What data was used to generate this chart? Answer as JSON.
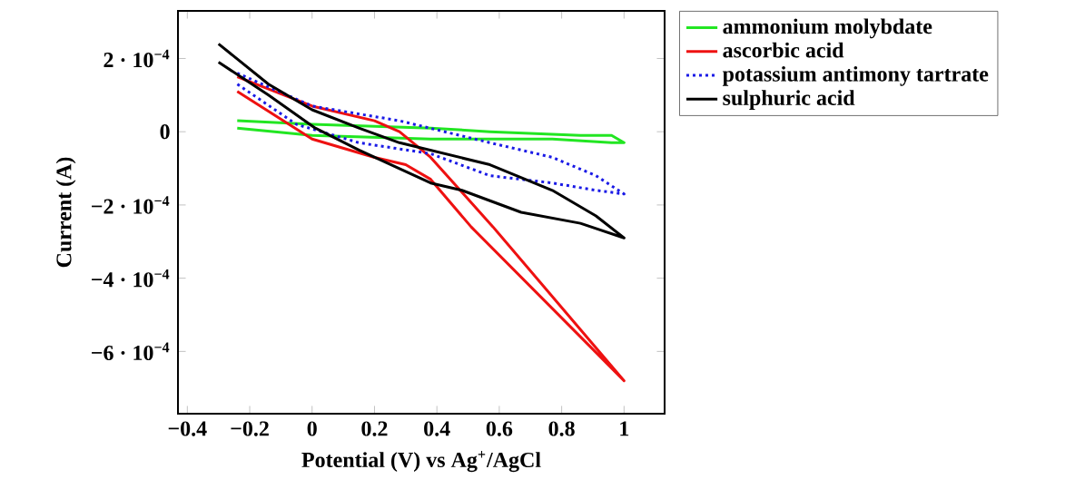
{
  "chart_data": {
    "type": "line",
    "xlabel": "Potential (V) vs Ag$^{+}$/AgCl",
    "ylabel": "Current (A)",
    "xlim": [
      -0.43,
      1.13
    ],
    "ylim": [
      -0.00077,
      0.00033
    ],
    "xticks": [
      {
        "value": -0.4,
        "label": "−0.4"
      },
      {
        "value": -0.2,
        "label": "−0.2"
      },
      0,
      0.2,
      0.4,
      0.6,
      0.8,
      1
    ],
    "yticks": [
      {
        "value": -0.0006,
        "label": "−6 · 10$^{−4}$"
      },
      {
        "value": -0.0004,
        "label": "−4 · 10$^{−4}$"
      },
      {
        "value": -0.0002,
        "label": "−2 · 10$^{−4}$"
      },
      0,
      {
        "value": 0.0002,
        "label": "2 · 10$^{−4}$"
      }
    ],
    "legend": "top right",
    "marker": "none",
    "series": [
      {
        "name": "ammonium molybdate",
        "color": "#22e622",
        "line_style": "solid",
        "x": [
          -0.24,
          0.0,
          0.38,
          0.57,
          0.86,
          0.96,
          1.0,
          0.96,
          0.77,
          0.38,
          0.0,
          -0.24
        ],
        "values": [
          3e-05,
          2e-05,
          1e-05,
          0.0,
          -1e-05,
          -1e-05,
          -3e-05,
          -3e-05,
          -2e-05,
          -2e-05,
          -1e-05,
          1e-05
        ]
      },
      {
        "name": "ascorbic acid",
        "color": "#ee1111",
        "line_style": "solid",
        "x": [
          -0.24,
          0.0,
          0.2,
          0.3,
          0.38,
          0.51,
          1.0,
          0.58,
          0.38,
          0.28,
          0.2,
          0.0,
          -0.24
        ],
        "values": [
          0.00011,
          -2e-05,
          -7e-05,
          -9e-05,
          -0.00013,
          -0.00026,
          -0.00068,
          -0.00026,
          -7e-05,
          0.0,
          3e-05,
          7e-05,
          0.00015
        ]
      },
      {
        "name": "potassium antimony tartrate",
        "color": "#1a1ae6",
        "line_style": "dotted",
        "x": [
          -0.24,
          0.0,
          0.28,
          0.57,
          0.77,
          0.91,
          1.0,
          0.91,
          0.77,
          0.57,
          0.38,
          0.15,
          -0.05,
          -0.24
        ],
        "values": [
          0.00016,
          7e-05,
          3e-05,
          -3e-05,
          -7e-05,
          -0.00012,
          -0.00017,
          -0.00016,
          -0.00014,
          -0.00012,
          -6e-05,
          -3e-05,
          2e-05,
          0.00013
        ]
      },
      {
        "name": "sulphuric acid",
        "color": "#000000",
        "line_style": "solid",
        "x": [
          -0.3,
          -0.14,
          0.0,
          0.15,
          0.28,
          0.57,
          0.77,
          0.91,
          1.0,
          0.86,
          0.67,
          0.48,
          0.38,
          0.15,
          0.01,
          -0.14,
          -0.3
        ],
        "values": [
          0.00024,
          0.00013,
          6e-05,
          1e-05,
          -3e-05,
          -9e-05,
          -0.00016,
          -0.00023,
          -0.00029,
          -0.00025,
          -0.00022,
          -0.00016,
          -0.00014,
          -5e-05,
          1e-05,
          0.0001,
          0.00019
        ]
      }
    ]
  }
}
